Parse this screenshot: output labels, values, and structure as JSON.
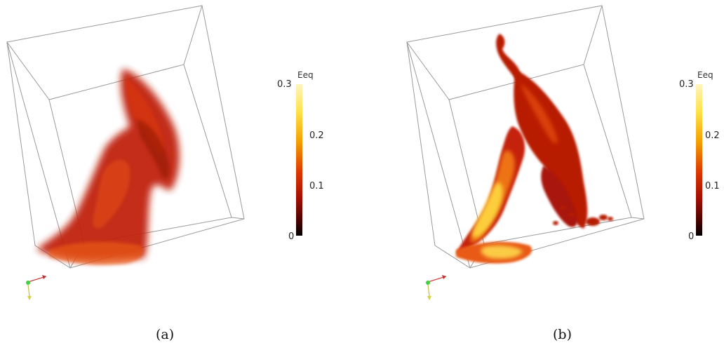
{
  "panels": [
    {
      "caption": "(a)",
      "colorbar": {
        "title": "Eeq",
        "ticks": [
          "0.3",
          "0.2",
          "0.1",
          "0"
        ]
      }
    },
    {
      "caption": "(b)",
      "colorbar": {
        "title": "Eeq",
        "ticks": [
          "0.3",
          "0.2",
          "0.1",
          "0"
        ]
      }
    }
  ],
  "colormap": [
    "#000000",
    "#4a0200",
    "#a50f00",
    "#dd3800",
    "#f4a000",
    "#ffe34a",
    "#fff4c0"
  ]
}
